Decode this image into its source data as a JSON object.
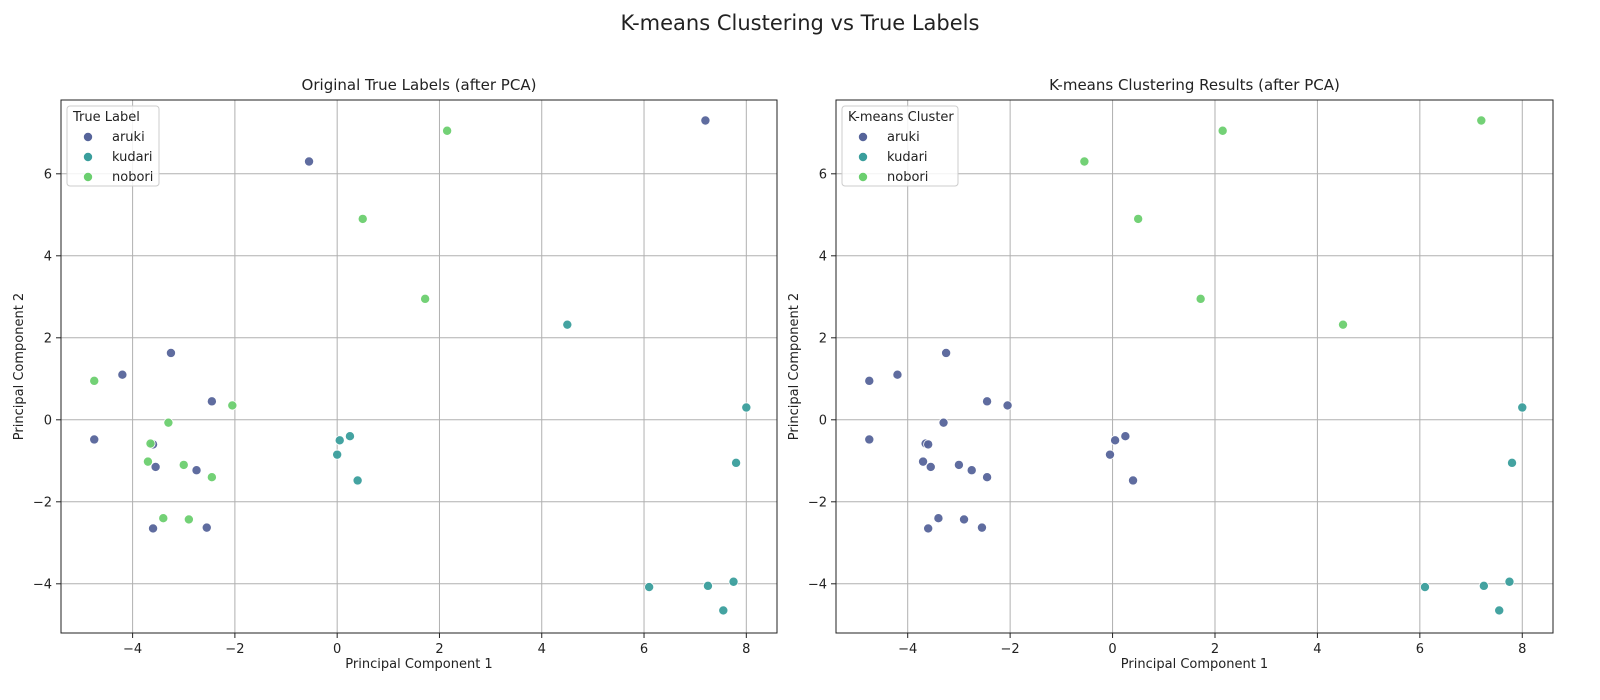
{
  "figure": {
    "suptitle": "K-means Clustering vs True Labels"
  },
  "colors": {
    "aruki": "#56649a",
    "kudari": "#3a9e9c",
    "nobori": "#6bcf6f"
  },
  "chart_data": [
    {
      "type": "scatter",
      "title": "Original True Labels (after PCA)",
      "xlabel": "Principal Component 1",
      "ylabel": "Principal Component 2",
      "xlim": [
        -5.4,
        8.6
      ],
      "ylim": [
        -5.2,
        7.8
      ],
      "xticks": [
        -4,
        -2,
        0,
        2,
        4,
        6,
        8
      ],
      "yticks": [
        -4,
        -2,
        0,
        2,
        4,
        6
      ],
      "grid": true,
      "legend": {
        "title": "True Label",
        "position": "top-left",
        "entries": [
          "aruki",
          "kudari",
          "nobori"
        ]
      },
      "series": [
        {
          "name": "aruki",
          "color": "#56649a",
          "points": [
            [
              -0.55,
              6.3
            ],
            [
              7.2,
              7.3
            ],
            [
              -3.25,
              1.63
            ],
            [
              -4.2,
              1.1
            ],
            [
              -2.45,
              0.45
            ],
            [
              -4.75,
              -0.48
            ],
            [
              -3.6,
              -0.6
            ],
            [
              -3.55,
              -1.15
            ],
            [
              -2.75,
              -1.23
            ],
            [
              -3.6,
              -2.65
            ],
            [
              -2.55,
              -2.63
            ]
          ]
        },
        {
          "name": "kudari",
          "color": "#3a9e9c",
          "points": [
            [
              4.5,
              2.32
            ],
            [
              8.0,
              0.3
            ],
            [
              0.25,
              -0.4
            ],
            [
              0.05,
              -0.5
            ],
            [
              0.0,
              -0.85
            ],
            [
              0.4,
              -1.48
            ],
            [
              7.8,
              -1.05
            ],
            [
              6.1,
              -4.08
            ],
            [
              7.25,
              -4.05
            ],
            [
              7.75,
              -3.95
            ],
            [
              7.55,
              -4.65
            ]
          ]
        },
        {
          "name": "nobori",
          "color": "#6bcf6f",
          "points": [
            [
              2.15,
              7.05
            ],
            [
              0.5,
              4.9
            ],
            [
              1.72,
              2.95
            ],
            [
              -4.75,
              0.95
            ],
            [
              -2.05,
              0.35
            ],
            [
              -3.3,
              -0.07
            ],
            [
              -3.65,
              -0.58
            ],
            [
              -3.7,
              -1.02
            ],
            [
              -3.0,
              -1.1
            ],
            [
              -2.45,
              -1.4
            ],
            [
              -3.4,
              -2.4
            ],
            [
              -2.9,
              -2.43
            ]
          ]
        }
      ]
    },
    {
      "type": "scatter",
      "title": "K-means Clustering Results (after PCA)",
      "xlabel": "Principal Component 1",
      "ylabel": "Principal Component 2",
      "xlim": [
        -5.4,
        8.6
      ],
      "ylim": [
        -5.2,
        7.8
      ],
      "xticks": [
        -4,
        -2,
        0,
        2,
        4,
        6,
        8
      ],
      "yticks": [
        -4,
        -2,
        0,
        2,
        4,
        6
      ],
      "grid": true,
      "legend": {
        "title": "K-means Cluster",
        "position": "top-left",
        "entries": [
          "aruki",
          "kudari",
          "nobori"
        ]
      },
      "series": [
        {
          "name": "aruki",
          "color": "#56649a",
          "points": [
            [
              -4.75,
              0.95
            ],
            [
              -4.2,
              1.1
            ],
            [
              -3.25,
              1.63
            ],
            [
              -2.45,
              0.45
            ],
            [
              -2.05,
              0.35
            ],
            [
              -3.3,
              -0.07
            ],
            [
              -4.75,
              -0.48
            ],
            [
              -3.65,
              -0.58
            ],
            [
              -3.6,
              -0.6
            ],
            [
              -3.7,
              -1.02
            ],
            [
              -3.55,
              -1.15
            ],
            [
              -3.0,
              -1.1
            ],
            [
              -2.75,
              -1.23
            ],
            [
              -2.45,
              -1.4
            ],
            [
              -0.05,
              -0.85
            ],
            [
              0.05,
              -0.5
            ],
            [
              0.25,
              -0.4
            ],
            [
              0.4,
              -1.48
            ],
            [
              -3.4,
              -2.4
            ],
            [
              -2.9,
              -2.43
            ],
            [
              -3.6,
              -2.65
            ],
            [
              -2.55,
              -2.63
            ]
          ]
        },
        {
          "name": "kudari",
          "color": "#3a9e9c",
          "points": [
            [
              8.0,
              0.3
            ],
            [
              7.8,
              -1.05
            ],
            [
              6.1,
              -4.08
            ],
            [
              7.25,
              -4.05
            ],
            [
              7.75,
              -3.95
            ],
            [
              7.55,
              -4.65
            ]
          ]
        },
        {
          "name": "nobori",
          "color": "#6bcf6f",
          "points": [
            [
              -0.55,
              6.3
            ],
            [
              2.15,
              7.05
            ],
            [
              0.5,
              4.9
            ],
            [
              1.72,
              2.95
            ],
            [
              4.5,
              2.32
            ],
            [
              7.2,
              7.3
            ]
          ]
        }
      ]
    }
  ]
}
